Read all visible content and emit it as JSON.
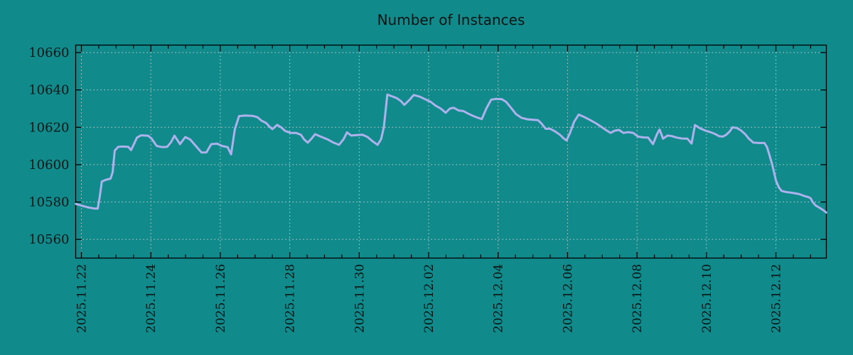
{
  "chart_data": {
    "type": "line",
    "title": "Number of Instances",
    "xlabel": "",
    "ylabel": "",
    "legend": "none",
    "grid": "dotted-major",
    "x_unit": "days since 2025.11.22 00:00 (estimated from axis)",
    "xlim": [
      -0.164,
      21.452
    ],
    "ylim": [
      10550,
      10664
    ],
    "y_ticks": [
      10560,
      10580,
      10600,
      10620,
      10640,
      10660
    ],
    "x_ticks": [
      {
        "t": 0,
        "label": "2025.11.22"
      },
      {
        "t": 2,
        "label": "2025.11.24"
      },
      {
        "t": 4,
        "label": "2025.11.26"
      },
      {
        "t": 6,
        "label": "2025.11.28"
      },
      {
        "t": 8,
        "label": "2025.11.30"
      },
      {
        "t": 10,
        "label": "2025.12.02"
      },
      {
        "t": 12,
        "label": "2025.12.04"
      },
      {
        "t": 14,
        "label": "2025.12.06"
      },
      {
        "t": 16,
        "label": "2025.12.08"
      },
      {
        "t": 18,
        "label": "2025.12.10"
      },
      {
        "t": 20,
        "label": "2025.12.12"
      }
    ],
    "x_minor_step_days": 0.5,
    "series": [
      {
        "name": "instances",
        "color": "#aeb2ec",
        "points": [
          [
            -0.16,
            10579
          ],
          [
            0.02,
            10578
          ],
          [
            0.22,
            10577
          ],
          [
            0.39,
            10576.5
          ],
          [
            0.47,
            10576.5
          ],
          [
            0.53,
            10583
          ],
          [
            0.59,
            10591
          ],
          [
            0.72,
            10592
          ],
          [
            0.84,
            10592.5
          ],
          [
            0.9,
            10596
          ],
          [
            0.96,
            10607.5
          ],
          [
            1.06,
            10609.5
          ],
          [
            1.19,
            10609.7
          ],
          [
            1.35,
            10609.5
          ],
          [
            1.43,
            10607.8
          ],
          [
            1.6,
            10614.5
          ],
          [
            1.72,
            10615.7
          ],
          [
            1.92,
            10615.5
          ],
          [
            2.02,
            10614
          ],
          [
            2.17,
            10610
          ],
          [
            2.33,
            10609.4
          ],
          [
            2.47,
            10609.6
          ],
          [
            2.58,
            10612
          ],
          [
            2.68,
            10615.5
          ],
          [
            2.84,
            10611
          ],
          [
            2.99,
            10614.8
          ],
          [
            3.13,
            10613.5
          ],
          [
            3.31,
            10609.7
          ],
          [
            3.46,
            10606.5
          ],
          [
            3.6,
            10606.6
          ],
          [
            3.74,
            10611
          ],
          [
            3.91,
            10611.2
          ],
          [
            4.05,
            10610
          ],
          [
            4.21,
            10609.4
          ],
          [
            4.31,
            10605.5
          ],
          [
            4.42,
            10619
          ],
          [
            4.54,
            10626
          ],
          [
            4.72,
            10626.3
          ],
          [
            4.93,
            10626.1
          ],
          [
            5.07,
            10625.4
          ],
          [
            5.19,
            10623.5
          ],
          [
            5.32,
            10622.3
          ],
          [
            5.42,
            10620.3
          ],
          [
            5.5,
            10619
          ],
          [
            5.64,
            10621.3
          ],
          [
            5.75,
            10620
          ],
          [
            5.87,
            10618
          ],
          [
            6.03,
            10617
          ],
          [
            6.18,
            10617
          ],
          [
            6.32,
            10616
          ],
          [
            6.42,
            10613.4
          ],
          [
            6.52,
            10611.8
          ],
          [
            6.63,
            10614
          ],
          [
            6.73,
            10616.3
          ],
          [
            6.89,
            10615
          ],
          [
            7.08,
            10613.6
          ],
          [
            7.26,
            10611.8
          ],
          [
            7.42,
            10610.6
          ],
          [
            7.55,
            10613.6
          ],
          [
            7.65,
            10617.3
          ],
          [
            7.77,
            10615.6
          ],
          [
            7.93,
            10615.8
          ],
          [
            8.1,
            10616
          ],
          [
            8.24,
            10614.8
          ],
          [
            8.38,
            10612.6
          ],
          [
            8.53,
            10610.6
          ],
          [
            8.63,
            10613.6
          ],
          [
            8.71,
            10620
          ],
          [
            8.81,
            10637.5
          ],
          [
            8.94,
            10636.6
          ],
          [
            9.08,
            10635.6
          ],
          [
            9.2,
            10634
          ],
          [
            9.3,
            10632
          ],
          [
            9.45,
            10634.7
          ],
          [
            9.57,
            10637.3
          ],
          [
            9.73,
            10636.5
          ],
          [
            9.9,
            10635
          ],
          [
            10.06,
            10633.6
          ],
          [
            10.2,
            10631.6
          ],
          [
            10.35,
            10630
          ],
          [
            10.49,
            10627.8
          ],
          [
            10.61,
            10630
          ],
          [
            10.72,
            10630.5
          ],
          [
            10.86,
            10629
          ],
          [
            11,
            10628.7
          ],
          [
            11.15,
            10627.2
          ],
          [
            11.29,
            10626
          ],
          [
            11.43,
            10625
          ],
          [
            11.53,
            10624.4
          ],
          [
            11.66,
            10630
          ],
          [
            11.8,
            10634.8
          ],
          [
            11.94,
            10635.2
          ],
          [
            12.11,
            10635
          ],
          [
            12.23,
            10633.6
          ],
          [
            12.37,
            10630.5
          ],
          [
            12.52,
            10627
          ],
          [
            12.68,
            10625
          ],
          [
            12.84,
            10624.3
          ],
          [
            13.01,
            10624
          ],
          [
            13.15,
            10623.8
          ],
          [
            13.25,
            10622
          ],
          [
            13.37,
            10619.2
          ],
          [
            13.5,
            10619.2
          ],
          [
            13.64,
            10617.8
          ],
          [
            13.78,
            10616
          ],
          [
            13.89,
            10614
          ],
          [
            13.97,
            10613
          ],
          [
            14.07,
            10617
          ],
          [
            14.19,
            10623
          ],
          [
            14.32,
            10626.8
          ],
          [
            14.48,
            10625.5
          ],
          [
            14.64,
            10624
          ],
          [
            14.83,
            10622
          ],
          [
            14.99,
            10620
          ],
          [
            15.13,
            10618.2
          ],
          [
            15.24,
            10617
          ],
          [
            15.36,
            10618.2
          ],
          [
            15.48,
            10618.6
          ],
          [
            15.61,
            10617
          ],
          [
            15.75,
            10617.4
          ],
          [
            15.89,
            10617
          ],
          [
            16.03,
            10615
          ],
          [
            16.18,
            10614.6
          ],
          [
            16.32,
            10614.5
          ],
          [
            16.46,
            10611
          ],
          [
            16.58,
            10616.5
          ],
          [
            16.65,
            10618.8
          ],
          [
            16.75,
            10613.9
          ],
          [
            16.88,
            10615.6
          ],
          [
            17,
            10615.3
          ],
          [
            17.15,
            10614.5
          ],
          [
            17.3,
            10614
          ],
          [
            17.45,
            10613.9
          ],
          [
            17.57,
            10611.3
          ],
          [
            17.67,
            10621.2
          ],
          [
            17.81,
            10619.5
          ],
          [
            17.96,
            10618.3
          ],
          [
            18.1,
            10617.5
          ],
          [
            18.24,
            10616.5
          ],
          [
            18.37,
            10615.2
          ],
          [
            18.47,
            10615
          ],
          [
            18.57,
            10616
          ],
          [
            18.67,
            10617.8
          ],
          [
            18.75,
            10620
          ],
          [
            18.88,
            10619.6
          ],
          [
            19,
            10618.2
          ],
          [
            19.12,
            10616.2
          ],
          [
            19.22,
            10613.9
          ],
          [
            19.35,
            10611.8
          ],
          [
            19.51,
            10611.6
          ],
          [
            19.67,
            10611.6
          ],
          [
            19.74,
            10609.5
          ],
          [
            19.8,
            10606
          ],
          [
            19.9,
            10599.5
          ],
          [
            20,
            10591.5
          ],
          [
            20.08,
            10588
          ],
          [
            20.16,
            10586
          ],
          [
            20.28,
            10585.4
          ],
          [
            20.51,
            10584.8
          ],
          [
            20.68,
            10584.2
          ],
          [
            20.82,
            10583.2
          ],
          [
            20.94,
            10582.6
          ],
          [
            21,
            10582
          ],
          [
            21.06,
            10580
          ],
          [
            21.14,
            10578.2
          ],
          [
            21.25,
            10577
          ],
          [
            21.35,
            10575.8
          ],
          [
            21.45,
            10574.4
          ]
        ]
      }
    ]
  },
  "style": {
    "background_color": "#108a8b",
    "line_color": "#aeb2ec",
    "grid_color": "#c6d0cc",
    "axis_color": "#000000",
    "text_color": "#0b1514"
  }
}
